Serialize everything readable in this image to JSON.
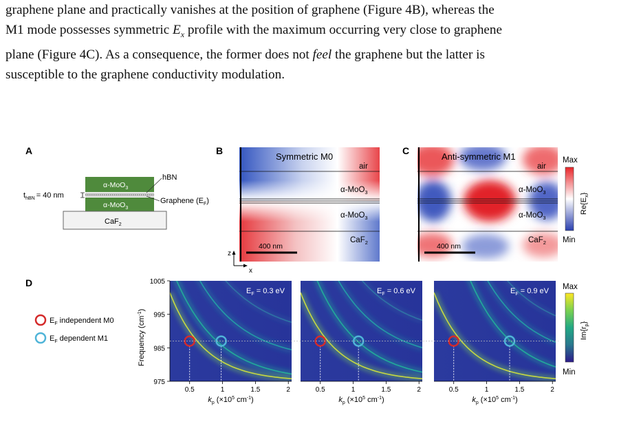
{
  "paragraph": {
    "line1": "graphene plane and practically vanishes at the position of graphene (Figure 4B), whereas the",
    "line2a": "M1 mode possesses symmetric ",
    "line2_ex": "E",
    "line2_ex_sub": "x",
    "line2b": " profile with the maximum occurring very close to graphene",
    "line3a": "plane (Figure 4C). As a consequence, the former does not ",
    "line3_feel": "feel",
    "line3b": " the graphene but the latter is",
    "line4": "susceptible to the graphene conductivity modulation."
  },
  "figure": {
    "panel_labels": {
      "A": "A",
      "B": "B",
      "C": "C",
      "D": "D"
    },
    "panelA": {
      "layer_top": "α-MoO",
      "layer_bottom": "α-MoO",
      "sub3": "3",
      "substrate": "CaF",
      "sub2": "2",
      "hbn_label": "hBN",
      "thickness_prefix": "t",
      "thickness_sub": "hBN",
      "thickness_value": "= 40 nm",
      "graphene_label": "Graphene (E",
      "graphene_sub": "F",
      "graphene_close": ")"
    },
    "panelB": {
      "title": "Symmetric M0",
      "air": "air",
      "moo_top": "α-MoO",
      "moo_bottom": "α-MoO",
      "sub3": "3",
      "caf": "CaF",
      "sub2": "2",
      "scalebar": "400 nm",
      "axis_z": "z",
      "axis_x": "x"
    },
    "panelC": {
      "title": "Anti-symmetric M1",
      "air": "air",
      "moo_top": "α-MoO",
      "moo_bottom": "α-MoO",
      "sub3": "3",
      "caf": "CaF",
      "sub2": "2",
      "scalebar": "400 nm"
    },
    "colorbar_top": {
      "max": "Max",
      "min": "Min",
      "label": "Re{E",
      "label_sub": "x",
      "label_close": "}",
      "colors": [
        "#e8262a",
        "#ffffff",
        "#2a3fae"
      ]
    },
    "legend": [
      {
        "label": "E",
        "sub": "F",
        "rest": " independent M0",
        "color": "#d42a2a"
      },
      {
        "label": "E",
        "sub": "F",
        "rest": " dependent M1",
        "color": "#4fb4d8"
      }
    ],
    "panelD": {
      "ylabel": "Frequency (cm",
      "ylabel_sup": "-1",
      "ylabel_close": ")",
      "yticks": [
        "1005",
        "995",
        "985",
        "975"
      ],
      "xticks": [
        "0.5",
        "1",
        "1.5",
        "2"
      ],
      "xlabel": "k",
      "xlabel_sub": "p",
      "xlabel_rest": " (×10",
      "xlabel_sup": "5",
      "xlabel_unit": " cm",
      "xlabel_unit_sup": "-1",
      "xlabel_close": ")",
      "subpanels": [
        {
          "label": "E",
          "sub": "F",
          "value": " = 0.3 eV",
          "m0_k": 0.5,
          "m1_k": 0.98
        },
        {
          "label": "E",
          "sub": "F",
          "value": " = 0.6 eV",
          "m0_k": 0.5,
          "m1_k": 1.08
        },
        {
          "label": "E",
          "sub": "F",
          "value": " = 0.9 eV",
          "m0_k": 0.5,
          "m1_k": 1.35
        }
      ],
      "marker_frequency": 987
    },
    "colorbar_bottom": {
      "max": "Max",
      "min": "Min",
      "label": "Im{r",
      "label_sub": "p",
      "label_close": "}"
    }
  }
}
